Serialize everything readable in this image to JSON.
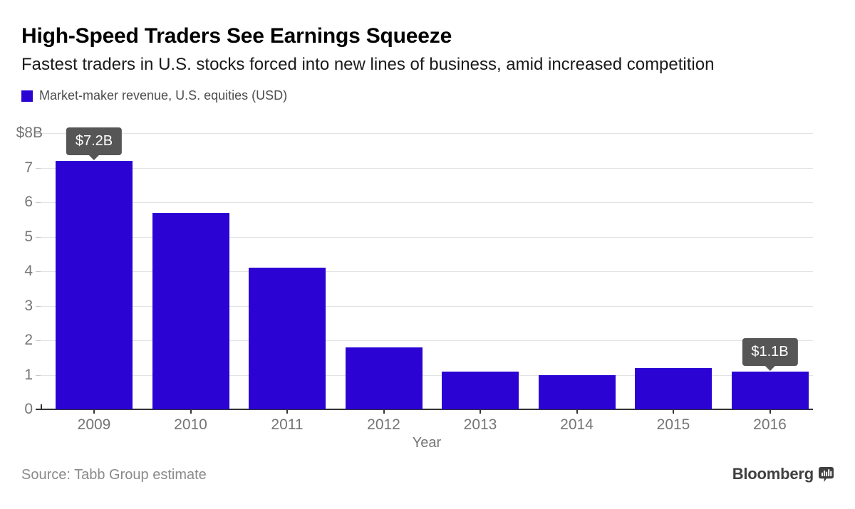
{
  "header": {
    "title": "High-Speed Traders See Earnings Squeeze",
    "subtitle": "Fastest traders in U.S. stocks forced into new lines of business, amid increased competition",
    "legend": {
      "label": "Market-maker revenue, U.S. equities (USD)"
    }
  },
  "chart_data": {
    "type": "bar",
    "title": "High-Speed Traders See Earnings Squeeze",
    "subtitle": "Fastest traders in U.S. stocks forced into new lines of business, amid increased competition",
    "series_name": "Market-maker revenue, U.S. equities (USD)",
    "categories": [
      "2009",
      "2010",
      "2011",
      "2012",
      "2013",
      "2014",
      "2015",
      "2016"
    ],
    "values": [
      7.2,
      5.7,
      4.1,
      1.8,
      1.1,
      1.0,
      1.2,
      1.1
    ],
    "xlabel": "Year",
    "ylabel": "",
    "ylim": [
      0,
      8
    ],
    "ytick_labels": [
      "0",
      "1",
      "2",
      "3",
      "4",
      "5",
      "6",
      "7",
      "$8B"
    ],
    "grid": true,
    "legend_position": "top-left",
    "annotations": [
      {
        "category": "2009",
        "label": "$7.2B"
      },
      {
        "category": "2016",
        "label": "$1.1B"
      }
    ]
  },
  "footer": {
    "source": "Source: Tabb Group estimate",
    "brand": "Bloomberg"
  },
  "colors": {
    "bar": "#2B04D4",
    "tooltip_bg": "#565656",
    "tooltip_text": "#ffffff",
    "grid": "#e3e3e3",
    "axis": "#333333",
    "tick_label": "#757575"
  }
}
